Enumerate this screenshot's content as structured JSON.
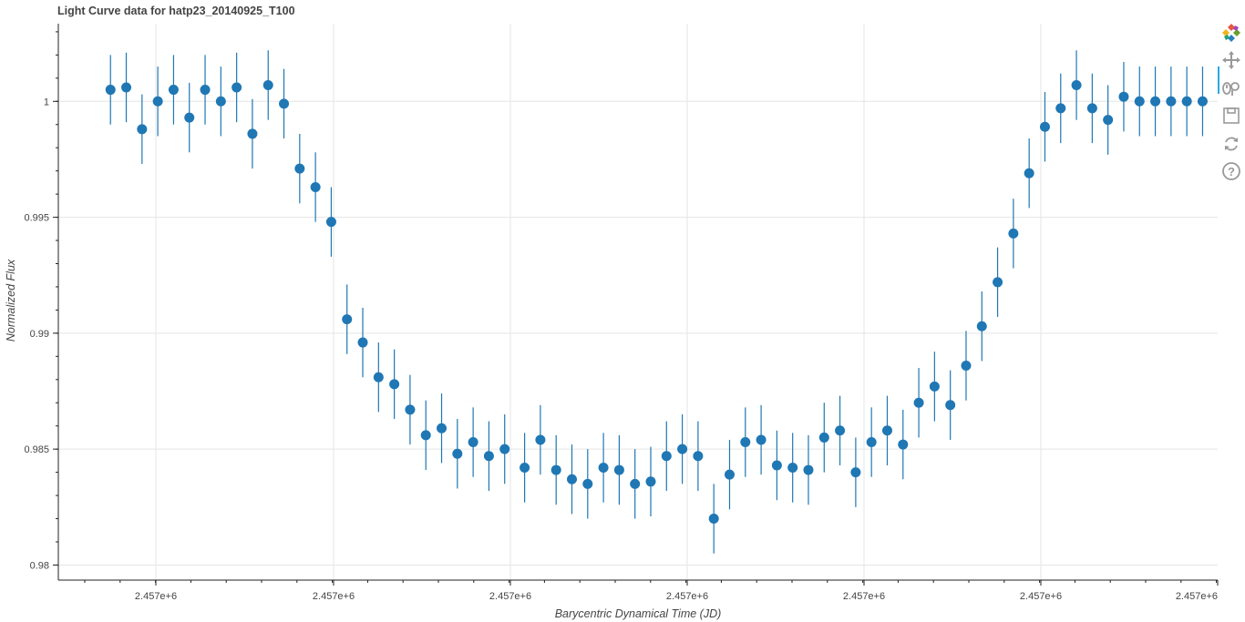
{
  "chart_data": {
    "type": "scatter",
    "title": "Light Curve data for hatp23_20140925_T100",
    "xlabel": "Barycentric Dynamical Time (JD)",
    "ylabel": "Normalized Flux",
    "xlim": [
      0,
      100
    ],
    "ylim": [
      0.97935,
      1.00335
    ],
    "x_tick_labels": [
      "2.457e+6",
      "2.457e+6",
      "2.457e+6",
      "2.457e+6",
      "2.457e+6",
      "2.457e+6",
      "2.457e+6",
      "2.457e+6",
      "2.457e+6"
    ],
    "y_ticks": [
      0.98,
      0.985,
      0.99,
      0.995,
      1.0
    ],
    "y_tick_labels": [
      "0.98",
      "0.985",
      "0.99",
      "0.995",
      "1"
    ],
    "grid": true,
    "marker_color": "#1f77b4",
    "errorbar_color": "#1f77b4",
    "error": 0.0015,
    "series": [
      {
        "x": [
          4.5,
          5.86,
          7.22,
          8.58,
          9.94,
          11.3,
          12.66,
          14.02,
          15.38,
          16.74,
          18.1,
          19.46,
          20.82,
          22.18,
          23.54,
          24.9,
          26.26,
          27.62,
          28.98,
          30.34,
          31.7,
          33.06,
          34.42,
          35.78,
          37.14,
          38.5,
          40.22,
          41.58,
          42.94,
          44.3,
          45.66,
          47.02,
          48.38,
          49.74,
          51.1,
          52.46,
          53.82,
          55.18,
          56.54,
          57.9,
          59.26,
          60.62,
          61.98,
          63.34,
          64.7,
          66.06,
          67.42,
          68.78,
          70.14,
          71.5,
          72.86,
          74.22,
          75.58,
          76.94,
          78.3,
          79.66,
          81.02,
          82.38,
          83.74,
          85.1,
          86.46,
          87.82,
          89.18,
          90.54,
          91.9,
          93.26,
          94.62,
          95.98,
          97.34,
          98.7
        ],
        "y": [
          1.0005,
          1.0006,
          0.9988,
          1.0,
          1.0005,
          0.9993,
          1.0005,
          1.0,
          1.0006,
          0.9986,
          1.0007,
          0.9999,
          0.9971,
          0.9963,
          0.9948,
          0.9906,
          0.9896,
          0.9881,
          0.9878,
          0.9867,
          0.9856,
          0.9859,
          0.9848,
          0.9853,
          0.9847,
          0.985,
          0.9842,
          0.9854,
          0.9841,
          0.9837,
          0.9835,
          0.9842,
          0.9841,
          0.9835,
          0.9836,
          0.9847,
          0.985,
          0.9847,
          0.982,
          0.9839,
          0.9853,
          0.9854,
          0.9843,
          0.9842,
          0.9841,
          0.9855,
          0.9858,
          0.984,
          0.9853,
          0.9858,
          0.9852,
          0.987,
          0.9877,
          0.9869,
          0.9886,
          0.9903,
          0.9922,
          0.9943,
          0.9969,
          0.9989,
          0.9997,
          1.0007,
          0.9997,
          0.9992,
          1.0002,
          1.0,
          1.0,
          1.0,
          1.0,
          1.0
        ]
      }
    ]
  },
  "toolbar": {
    "items": [
      "bokeh-logo",
      "pan-tool",
      "wheel-zoom-tool",
      "save-tool",
      "reset-tool",
      "help-tool"
    ]
  }
}
